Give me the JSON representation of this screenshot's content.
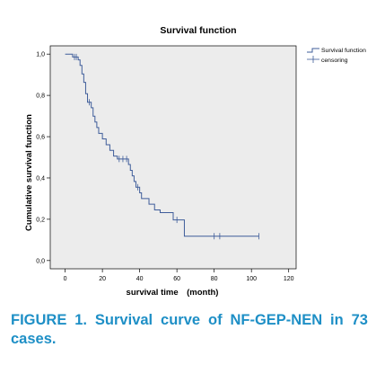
{
  "chart_data": {
    "type": "line",
    "title": "Survival function",
    "xlabel": "survival time　(month)",
    "ylabel": "Cumulative survival function",
    "xlim": [
      -8,
      124
    ],
    "ylim": [
      -0.04,
      1.04
    ],
    "x_ticks": [
      0,
      20,
      40,
      60,
      80,
      100,
      120
    ],
    "x_tick_labels": [
      "0",
      "20",
      "40",
      "60",
      "80",
      "100",
      "120"
    ],
    "y_ticks": [
      0,
      0.2,
      0.4,
      0.6,
      0.8,
      1.0
    ],
    "y_tick_labels": [
      "0,0",
      "0,2",
      "0,4",
      "0,6",
      "0,8",
      "1,0"
    ],
    "grid": false,
    "legend_position": "top-right",
    "series": [
      {
        "name": "Survival function",
        "step": true,
        "points": [
          [
            0,
            1.0
          ],
          [
            4,
            1.0
          ],
          [
            4,
            0.986
          ],
          [
            7,
            0.986
          ],
          [
            7,
            0.972
          ],
          [
            8,
            0.972
          ],
          [
            8,
            0.945
          ],
          [
            9,
            0.945
          ],
          [
            9,
            0.904
          ],
          [
            10,
            0.904
          ],
          [
            10,
            0.863
          ],
          [
            11,
            0.863
          ],
          [
            11,
            0.808
          ],
          [
            12,
            0.808
          ],
          [
            12,
            0.767
          ],
          [
            14,
            0.767
          ],
          [
            14,
            0.74
          ],
          [
            15,
            0.74
          ],
          [
            15,
            0.699
          ],
          [
            16,
            0.699
          ],
          [
            16,
            0.671
          ],
          [
            17,
            0.671
          ],
          [
            17,
            0.644
          ],
          [
            18,
            0.644
          ],
          [
            18,
            0.616
          ],
          [
            20,
            0.616
          ],
          [
            20,
            0.589
          ],
          [
            22,
            0.589
          ],
          [
            22,
            0.561
          ],
          [
            24,
            0.561
          ],
          [
            24,
            0.534
          ],
          [
            26,
            0.534
          ],
          [
            26,
            0.506
          ],
          [
            28,
            0.506
          ],
          [
            28,
            0.492
          ],
          [
            34,
            0.492
          ],
          [
            34,
            0.465
          ],
          [
            35,
            0.465
          ],
          [
            35,
            0.437
          ],
          [
            36,
            0.437
          ],
          [
            36,
            0.41
          ],
          [
            37,
            0.41
          ],
          [
            37,
            0.383
          ],
          [
            38,
            0.383
          ],
          [
            38,
            0.355
          ],
          [
            40,
            0.355
          ],
          [
            40,
            0.328
          ],
          [
            41,
            0.328
          ],
          [
            41,
            0.3
          ],
          [
            45,
            0.3
          ],
          [
            45,
            0.273
          ],
          [
            48,
            0.273
          ],
          [
            48,
            0.245
          ],
          [
            51,
            0.245
          ],
          [
            51,
            0.232
          ],
          [
            58,
            0.232
          ],
          [
            58,
            0.197
          ],
          [
            64,
            0.197
          ],
          [
            64,
            0.118
          ],
          [
            104,
            0.118
          ]
        ]
      },
      {
        "name": "censoring",
        "marker": "+",
        "points": [
          [
            5,
            0.986
          ],
          [
            6,
            0.986
          ],
          [
            13,
            0.767
          ],
          [
            29,
            0.492
          ],
          [
            31,
            0.492
          ],
          [
            33,
            0.492
          ],
          [
            39,
            0.355
          ],
          [
            60,
            0.197
          ],
          [
            80,
            0.118
          ],
          [
            83,
            0.118
          ],
          [
            104,
            0.118
          ]
        ]
      }
    ],
    "colors": {
      "line": "#3f5d9a",
      "plot_background": "#ececec",
      "caption": "#1e8fc6"
    }
  },
  "caption": "FIGURE 1. Survival curve of NF-GEP-NEN in 73 cases."
}
